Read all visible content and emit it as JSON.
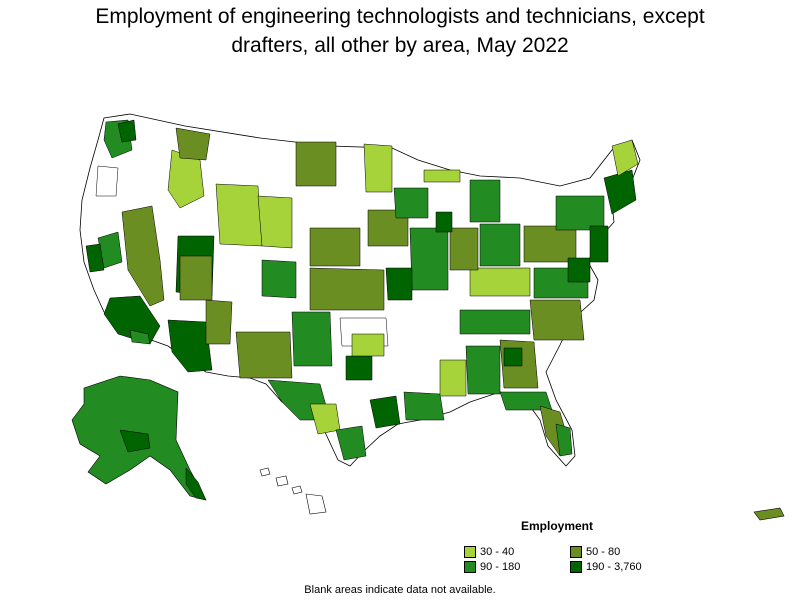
{
  "title_line1": "Employment of engineering technologists and technicians, except",
  "title_line2": "drafters, all other by area, May 2022",
  "legend": {
    "title": "Employment",
    "items": [
      {
        "label": "30 - 40",
        "color": "#a6d23a"
      },
      {
        "label": "50 - 80",
        "color": "#6b8e23"
      },
      {
        "label": "90 - 180",
        "color": "#228b22"
      },
      {
        "label": "190 - 3,760",
        "color": "#006400"
      }
    ]
  },
  "footnote": "Blank areas indicate data not available.",
  "colors": {
    "blank": "#ffffff",
    "border": "#000000"
  }
}
